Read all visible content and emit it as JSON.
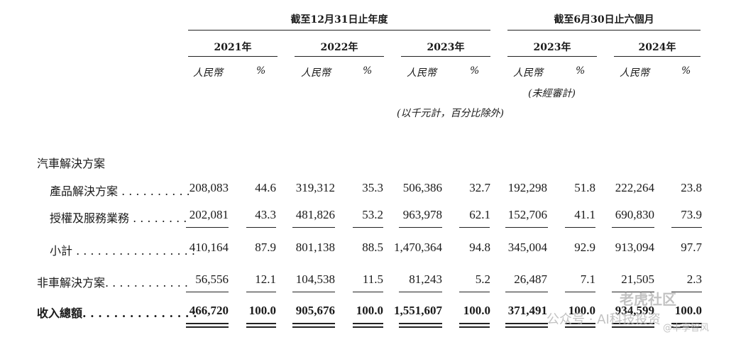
{
  "header": {
    "period_annual": "截至12月31日止年度",
    "period_interim": "截至6月30日止六個月"
  },
  "columns": [
    {
      "year": "2021年",
      "currency": "人民幣",
      "pct": "%"
    },
    {
      "year": "2022年",
      "currency": "人民幣",
      "pct": "%"
    },
    {
      "year": "2023年",
      "currency": "人民幣",
      "pct": "%"
    },
    {
      "year": "2023年",
      "currency": "人民幣",
      "pct": "%",
      "note": "(未經審計)"
    },
    {
      "year": "2024年",
      "currency": "人民幣",
      "pct": "%"
    }
  ],
  "unit_note": "(以千元計，百分比除外)",
  "section_header": "汽車解決方案",
  "rows": [
    {
      "label": "產品解決方案 . . . . . . . . . .",
      "values": [
        "208,083",
        "44.6",
        "319,312",
        "35.3",
        "506,386",
        "32.7",
        "192,298",
        "51.8",
        "222,264",
        "23.8"
      ]
    },
    {
      "label": "授權及服務業務 . . . . . . . .",
      "values": [
        "202,081",
        "43.3",
        "481,826",
        "53.2",
        "963,978",
        "62.1",
        "152,706",
        "41.1",
        "690,830",
        "73.9"
      ]
    },
    {
      "label": "小計 . . . . . . . . . . . . . . . . .",
      "values": [
        "410,164",
        "87.9",
        "801,138",
        "88.5",
        "1,470,364",
        "94.8",
        "345,004",
        "92.9",
        "913,094",
        "97.7"
      ]
    },
    {
      "label": "非車解決方案. . . . . . . . . . . .",
      "values": [
        "56,556",
        "12.1",
        "104,538",
        "11.5",
        "81,243",
        "5.2",
        "26,487",
        "7.1",
        "21,505",
        "2.3"
      ]
    },
    {
      "label": "收入總額. . . . . . . . . . . . . . .",
      "values": [
        "466,720",
        "100.0",
        "905,676",
        "100.0",
        "1,551,607",
        "100.0",
        "371,491",
        "100.0",
        "934,599",
        "100.0"
      ]
    }
  ],
  "watermark": {
    "line1": "老虎社区",
    "line2": "公众号 · AI科技投资",
    "line3": "@丰享智风"
  }
}
